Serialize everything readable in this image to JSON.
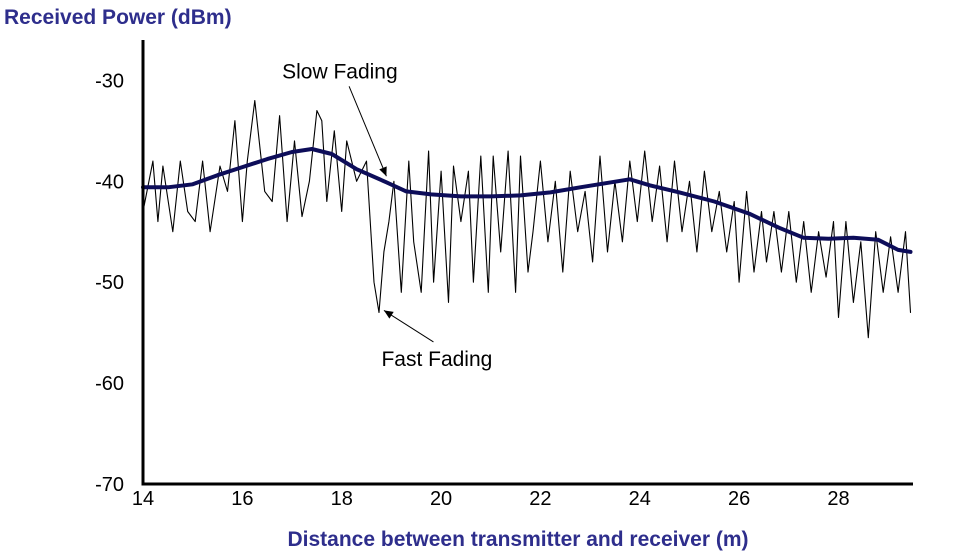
{
  "chart_data": {
    "type": "line",
    "ylabel": "Received Power (dBm)",
    "xlabel": "Distance between transmitter and receiver (m)",
    "xlim": [
      14,
      29.5
    ],
    "ylim": [
      -70,
      -26
    ],
    "x_ticks": [
      "14",
      "16",
      "18",
      "20",
      "22",
      "24",
      "26",
      "28"
    ],
    "y_ticks": [
      "-30",
      "-40",
      "-50",
      "-60",
      "-70"
    ],
    "grid": false,
    "legend": "none",
    "colors": {
      "slow": "#0d0d59",
      "fast": "#000000",
      "axis_label": "#2e2e8c"
    },
    "annotations": [
      {
        "text": "Slow Fading",
        "text_at": [
          16.8,
          -29.8
        ],
        "arrow_to": [
          18.9,
          -39.5
        ]
      },
      {
        "text": "Fast Fading",
        "text_at": [
          18.8,
          -58.3
        ],
        "arrow_to": [
          18.85,
          -52.8
        ]
      }
    ],
    "series": [
      {
        "role": "slow",
        "x": [
          14,
          14.5,
          15,
          15.5,
          16,
          16.5,
          17,
          17.4,
          17.8,
          18.3,
          18.9,
          19.3,
          19.8,
          20.4,
          21,
          21.6,
          22.2,
          22.8,
          23.3,
          23.8,
          24.2,
          24.8,
          25.5,
          26.2,
          26.8,
          27.3,
          27.8,
          28.3,
          28.8,
          29.2,
          29.45
        ],
        "y": [
          -40.6,
          -40.6,
          -40.3,
          -39.4,
          -38.6,
          -37.8,
          -37.1,
          -36.8,
          -37.3,
          -38.8,
          -40.1,
          -41.0,
          -41.3,
          -41.5,
          -41.5,
          -41.4,
          -41.1,
          -40.6,
          -40.2,
          -39.8,
          -40.4,
          -41.1,
          -42.0,
          -43.2,
          -44.6,
          -45.6,
          -45.7,
          -45.6,
          -45.8,
          -46.8,
          -47.0
        ]
      },
      {
        "role": "fast",
        "x": [
          14,
          14.2,
          14.3,
          14.4,
          14.6,
          14.75,
          14.9,
          15.05,
          15.2,
          15.35,
          15.55,
          15.7,
          15.85,
          16.0,
          16.1,
          16.25,
          16.45,
          16.6,
          16.75,
          16.9,
          17.05,
          17.2,
          17.35,
          17.5,
          17.6,
          17.7,
          17.85,
          18.0,
          18.1,
          18.3,
          18.5,
          18.65,
          18.75,
          18.85,
          18.95,
          19.05,
          19.2,
          19.35,
          19.45,
          19.6,
          19.75,
          19.85,
          20.0,
          20.15,
          20.25,
          20.4,
          20.55,
          20.65,
          20.8,
          20.95,
          21.05,
          21.2,
          21.35,
          21.5,
          21.6,
          21.75,
          21.85,
          22.0,
          22.15,
          22.3,
          22.45,
          22.6,
          22.75,
          22.9,
          23.05,
          23.2,
          23.35,
          23.5,
          23.65,
          23.8,
          23.95,
          24.1,
          24.25,
          24.4,
          24.55,
          24.7,
          24.85,
          25.0,
          25.15,
          25.3,
          25.45,
          25.6,
          25.75,
          25.9,
          26.0,
          26.15,
          26.3,
          26.45,
          26.55,
          26.7,
          26.85,
          27.0,
          27.15,
          27.3,
          27.45,
          27.6,
          27.75,
          27.9,
          28.0,
          28.15,
          28.3,
          28.45,
          28.6,
          28.75,
          28.9,
          29.05,
          29.2,
          29.35,
          29.45
        ],
        "y": [
          -43,
          -38,
          -44,
          -38.5,
          -45,
          -38,
          -43,
          -44,
          -38,
          -45,
          -38.5,
          -41,
          -34,
          -44,
          -38,
          -32,
          -41,
          -42,
          -33.5,
          -44,
          -36,
          -43.5,
          -40,
          -33,
          -34,
          -42,
          -35,
          -43,
          -36,
          -40,
          -38,
          -50,
          -53,
          -47,
          -44,
          -40,
          -51,
          -38,
          -46,
          -51,
          -37,
          -50,
          -39,
          -52,
          -38.5,
          -44,
          -39,
          -50,
          -37.5,
          -51,
          -37.5,
          -47,
          -37,
          -51,
          -37.5,
          -49,
          -45,
          -38,
          -46,
          -40,
          -49,
          -39,
          -45,
          -41,
          -48,
          -37.5,
          -47,
          -40,
          -46,
          -38,
          -44,
          -37,
          -44,
          -38.5,
          -46,
          -38,
          -45,
          -40,
          -47,
          -39,
          -45,
          -41,
          -47,
          -42,
          -50,
          -41,
          -49,
          -43,
          -48,
          -43,
          -49,
          -43,
          -50,
          -44,
          -51,
          -45,
          -49.5,
          -44,
          -53.5,
          -44,
          -52,
          -46,
          -55.5,
          -45,
          -51,
          -45.5,
          -51,
          -45,
          -53
        ]
      }
    ]
  }
}
